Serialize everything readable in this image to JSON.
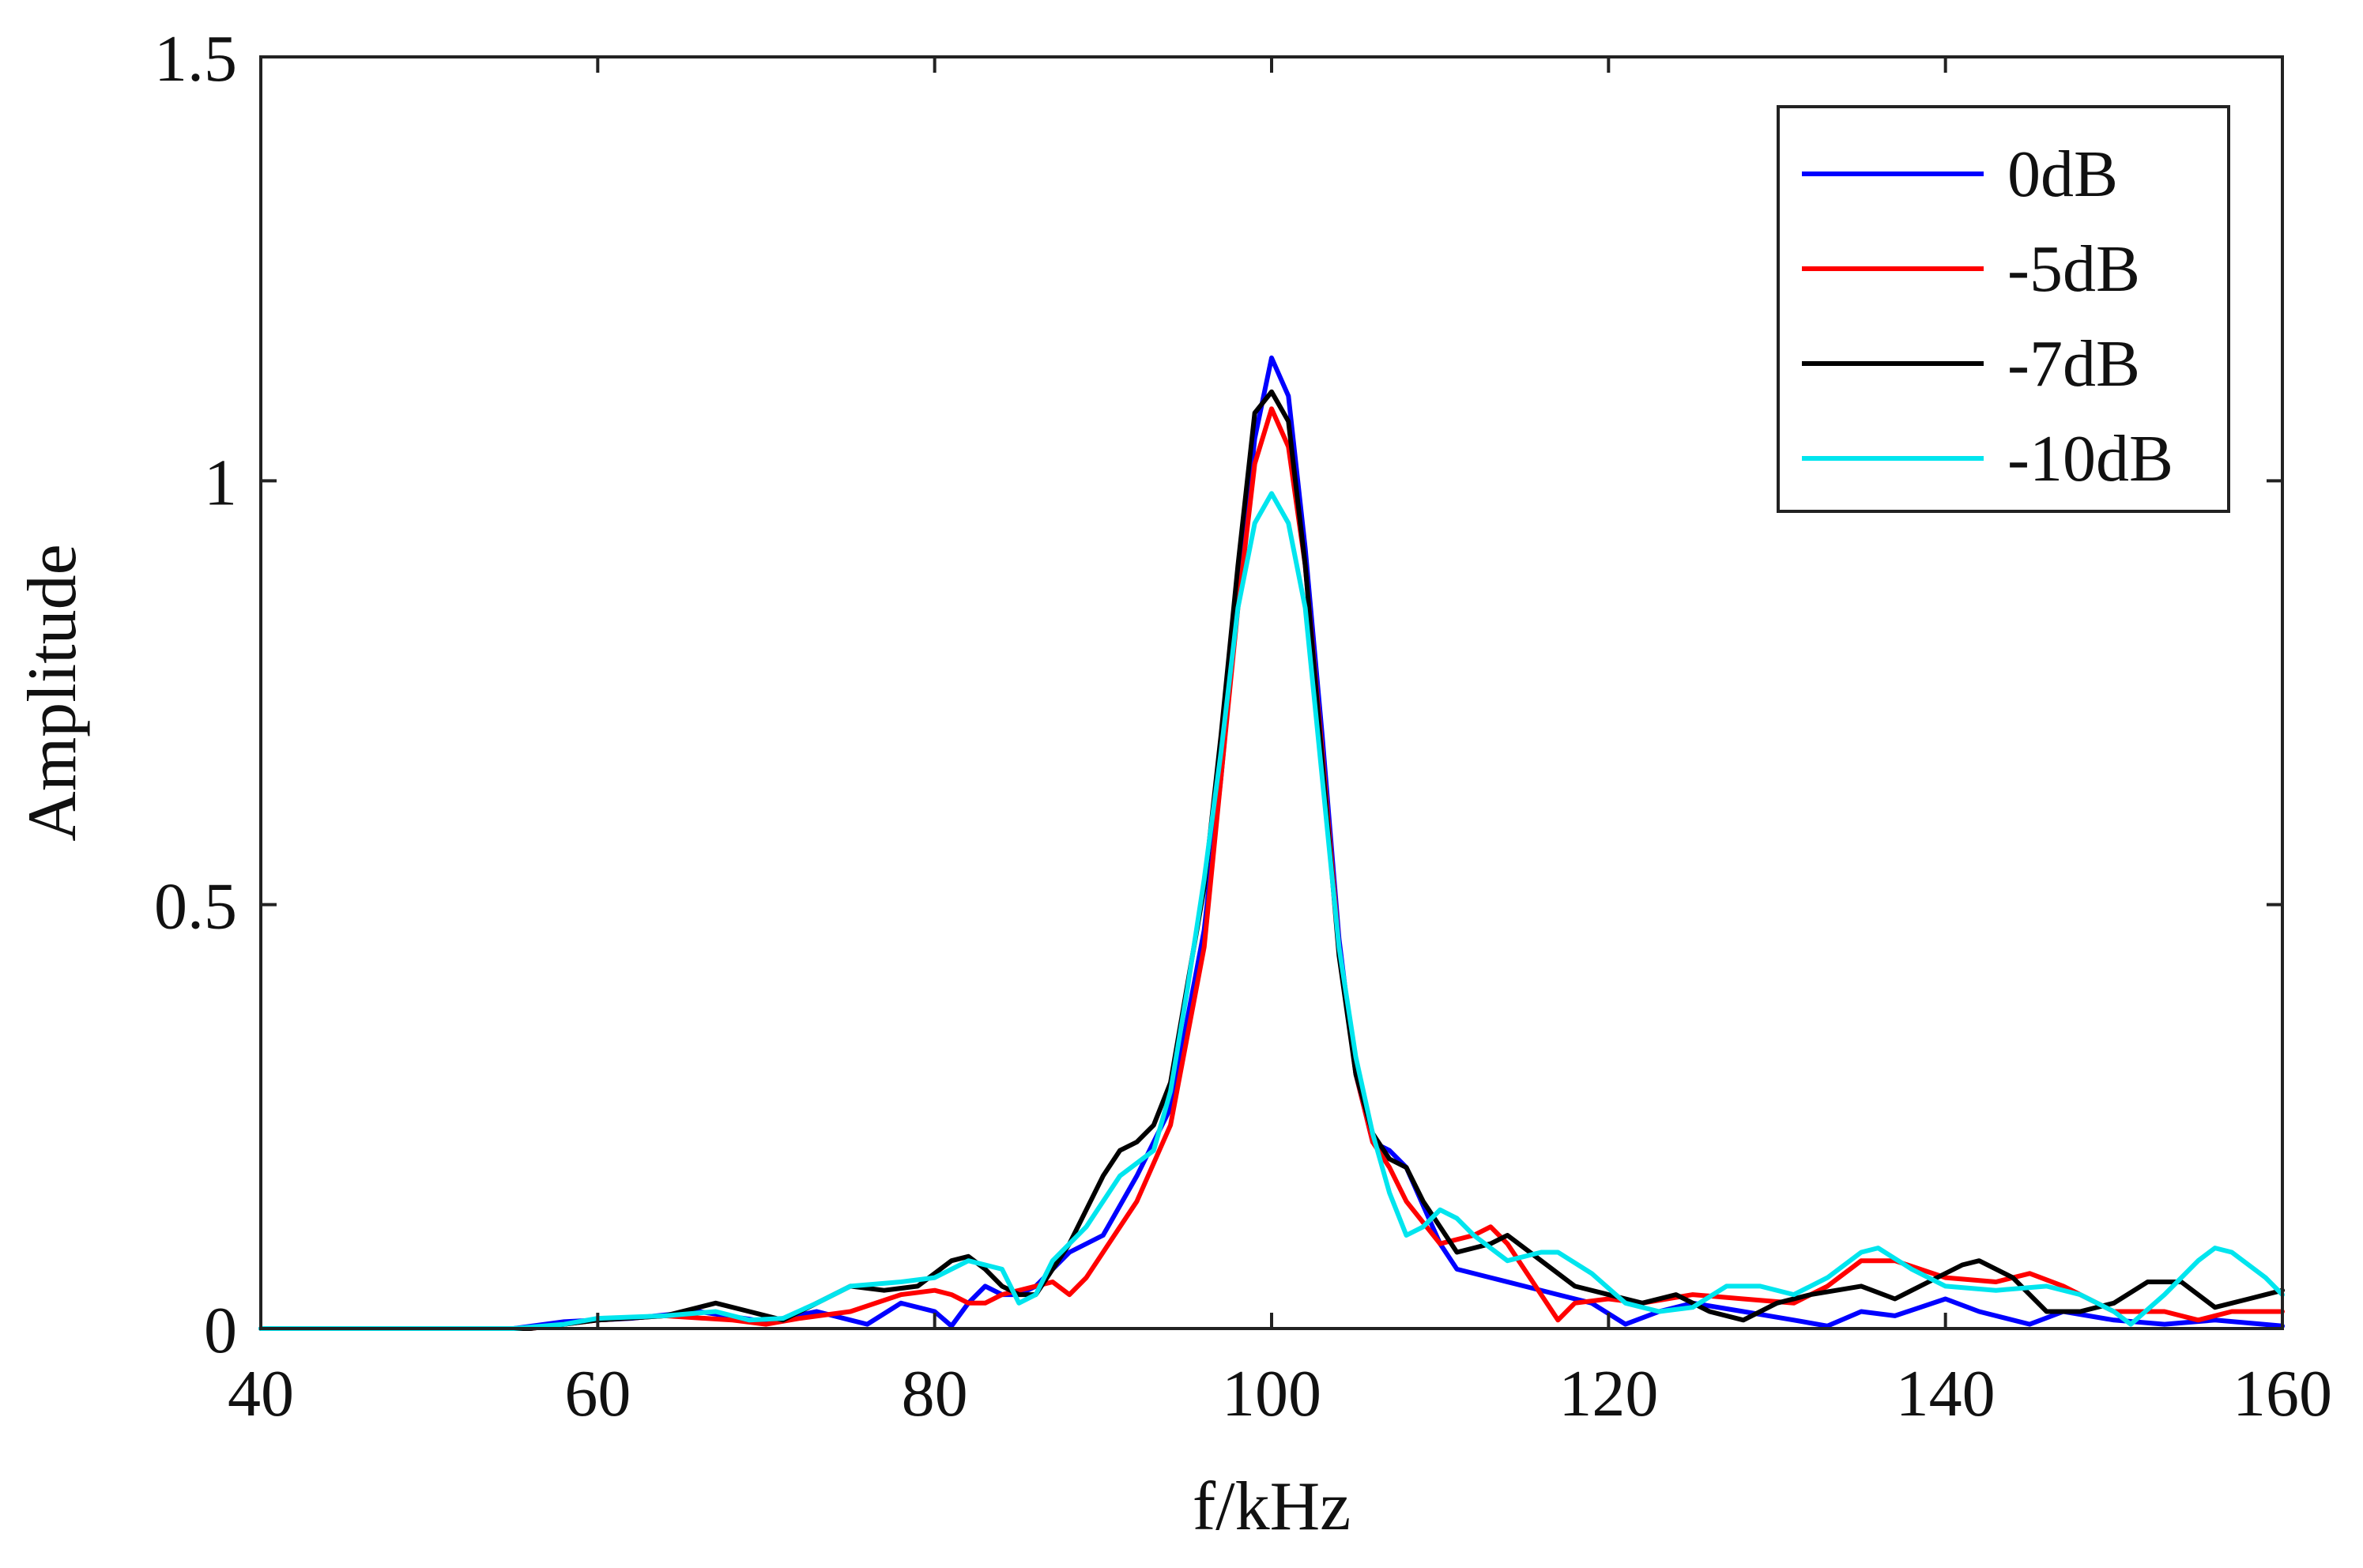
{
  "chart_data": {
    "type": "line",
    "title": "",
    "xlabel": "f/kHz",
    "ylabel": "Amplitude",
    "xlim": [
      40,
      160
    ],
    "ylim": [
      0,
      1.5
    ],
    "xticks": [
      40,
      60,
      80,
      100,
      120,
      140,
      160
    ],
    "yticks": [
      0,
      0.5,
      1,
      1.5
    ],
    "xtick_labels": [
      "40",
      "60",
      "80",
      "100",
      "120",
      "140",
      "160"
    ],
    "ytick_labels": [
      "0",
      "0.5",
      "1",
      "1.5"
    ],
    "grid": false,
    "legend": "top-right",
    "series": [
      {
        "name": "0dB",
        "color": "#0000ff",
        "points": [
          [
            40,
            0
          ],
          [
            50,
            0
          ],
          [
            55,
            0
          ],
          [
            58,
            0.008
          ],
          [
            62,
            0.012
          ],
          [
            66,
            0.02
          ],
          [
            70,
            0.008
          ],
          [
            73,
            0.02
          ],
          [
            75,
            0.01
          ],
          [
            76,
            0.005
          ],
          [
            78,
            0.03
          ],
          [
            80,
            0.02
          ],
          [
            81,
            0.003
          ],
          [
            82,
            0.03
          ],
          [
            83,
            0.05
          ],
          [
            84,
            0.04
          ],
          [
            85,
            0.04
          ],
          [
            86,
            0.05
          ],
          [
            88,
            0.09
          ],
          [
            90,
            0.11
          ],
          [
            92,
            0.18
          ],
          [
            94,
            0.26
          ],
          [
            96,
            0.47
          ],
          [
            97,
            0.65
          ],
          [
            98,
            0.86
          ],
          [
            99,
            1.05
          ],
          [
            100,
            1.145
          ],
          [
            101,
            1.1
          ],
          [
            102,
            0.92
          ],
          [
            103,
            0.7
          ],
          [
            104,
            0.46
          ],
          [
            105,
            0.3
          ],
          [
            106,
            0.22
          ],
          [
            107,
            0.21
          ],
          [
            108,
            0.19
          ],
          [
            110,
            0.1
          ],
          [
            111,
            0.07
          ],
          [
            113,
            0.06
          ],
          [
            115,
            0.05
          ],
          [
            117,
            0.04
          ],
          [
            119,
            0.03
          ],
          [
            121,
            0.005
          ],
          [
            123,
            0.02
          ],
          [
            125,
            0.03
          ],
          [
            128,
            0.02
          ],
          [
            131,
            0.01
          ],
          [
            133,
            0.003
          ],
          [
            135,
            0.02
          ],
          [
            137,
            0.015
          ],
          [
            140,
            0.035
          ],
          [
            142,
            0.02
          ],
          [
            145,
            0.005
          ],
          [
            147,
            0.02
          ],
          [
            150,
            0.01
          ],
          [
            153,
            0.005
          ],
          [
            156,
            0.01
          ],
          [
            160,
            0.003
          ]
        ]
      },
      {
        "name": "-5dB",
        "color": "#ff0000",
        "points": [
          [
            40,
            0
          ],
          [
            50,
            0
          ],
          [
            56,
            0
          ],
          [
            60,
            0.01
          ],
          [
            64,
            0.015
          ],
          [
            68,
            0.01
          ],
          [
            70,
            0.005
          ],
          [
            72,
            0.012
          ],
          [
            75,
            0.02
          ],
          [
            78,
            0.04
          ],
          [
            80,
            0.045
          ],
          [
            81,
            0.04
          ],
          [
            82,
            0.03
          ],
          [
            83,
            0.03
          ],
          [
            84,
            0.04
          ],
          [
            86,
            0.05
          ],
          [
            87,
            0.055
          ],
          [
            88,
            0.04
          ],
          [
            89,
            0.06
          ],
          [
            90,
            0.09
          ],
          [
            92,
            0.15
          ],
          [
            94,
            0.24
          ],
          [
            96,
            0.45
          ],
          [
            97,
            0.65
          ],
          [
            98,
            0.85
          ],
          [
            99,
            1.02
          ],
          [
            100,
            1.085
          ],
          [
            101,
            1.04
          ],
          [
            102,
            0.9
          ],
          [
            103,
            0.68
          ],
          [
            104,
            0.45
          ],
          [
            105,
            0.3
          ],
          [
            106,
            0.22
          ],
          [
            107,
            0.19
          ],
          [
            108,
            0.15
          ],
          [
            110,
            0.1
          ],
          [
            112,
            0.11
          ],
          [
            113,
            0.12
          ],
          [
            114,
            0.1
          ],
          [
            116,
            0.04
          ],
          [
            117,
            0.01
          ],
          [
            118,
            0.03
          ],
          [
            120,
            0.035
          ],
          [
            122,
            0.03
          ],
          [
            125,
            0.04
          ],
          [
            128,
            0.035
          ],
          [
            131,
            0.03
          ],
          [
            133,
            0.05
          ],
          [
            135,
            0.08
          ],
          [
            137,
            0.08
          ],
          [
            140,
            0.06
          ],
          [
            143,
            0.055
          ],
          [
            145,
            0.065
          ],
          [
            147,
            0.05
          ],
          [
            150,
            0.02
          ],
          [
            153,
            0.02
          ],
          [
            155,
            0.01
          ],
          [
            157,
            0.02
          ],
          [
            160,
            0.02
          ]
        ]
      },
      {
        "name": "-7dB",
        "color": "#000000",
        "points": [
          [
            40,
            0
          ],
          [
            50,
            0
          ],
          [
            56,
            0
          ],
          [
            60,
            0.01
          ],
          [
            64,
            0.015
          ],
          [
            67,
            0.03
          ],
          [
            69,
            0.02
          ],
          [
            71,
            0.01
          ],
          [
            73,
            0.03
          ],
          [
            75,
            0.05
          ],
          [
            77,
            0.045
          ],
          [
            79,
            0.05
          ],
          [
            81,
            0.08
          ],
          [
            82,
            0.085
          ],
          [
            83,
            0.07
          ],
          [
            84,
            0.05
          ],
          [
            85,
            0.04
          ],
          [
            86,
            0.04
          ],
          [
            88,
            0.1
          ],
          [
            90,
            0.18
          ],
          [
            91,
            0.21
          ],
          [
            92,
            0.22
          ],
          [
            93,
            0.24
          ],
          [
            94,
            0.29
          ],
          [
            96,
            0.52
          ],
          [
            97,
            0.7
          ],
          [
            98,
            0.9
          ],
          [
            99,
            1.08
          ],
          [
            100,
            1.105
          ],
          [
            101,
            1.07
          ],
          [
            102,
            0.9
          ],
          [
            103,
            0.67
          ],
          [
            104,
            0.44
          ],
          [
            105,
            0.3
          ],
          [
            106,
            0.23
          ],
          [
            107,
            0.2
          ],
          [
            108,
            0.19
          ],
          [
            109,
            0.15
          ],
          [
            110,
            0.12
          ],
          [
            111,
            0.09
          ],
          [
            112,
            0.095
          ],
          [
            113,
            0.1
          ],
          [
            114,
            0.11
          ],
          [
            116,
            0.08
          ],
          [
            118,
            0.05
          ],
          [
            120,
            0.04
          ],
          [
            122,
            0.03
          ],
          [
            124,
            0.04
          ],
          [
            126,
            0.02
          ],
          [
            128,
            0.01
          ],
          [
            130,
            0.03
          ],
          [
            132,
            0.04
          ],
          [
            135,
            0.05
          ],
          [
            137,
            0.035
          ],
          [
            139,
            0.055
          ],
          [
            141,
            0.075
          ],
          [
            142,
            0.08
          ],
          [
            144,
            0.06
          ],
          [
            146,
            0.02
          ],
          [
            148,
            0.02
          ],
          [
            150,
            0.03
          ],
          [
            152,
            0.055
          ],
          [
            154,
            0.055
          ],
          [
            156,
            0.025
          ],
          [
            158,
            0.035
          ],
          [
            160,
            0.045
          ]
        ]
      },
      {
        "name": "-10dB",
        "color": "#00e5ee",
        "points": [
          [
            40,
            0
          ],
          [
            50,
            0
          ],
          [
            55,
            0
          ],
          [
            58,
            0.005
          ],
          [
            60,
            0.012
          ],
          [
            64,
            0.015
          ],
          [
            67,
            0.02
          ],
          [
            69,
            0.01
          ],
          [
            71,
            0.012
          ],
          [
            73,
            0.03
          ],
          [
            75,
            0.05
          ],
          [
            78,
            0.055
          ],
          [
            80,
            0.06
          ],
          [
            82,
            0.08
          ],
          [
            84,
            0.07
          ],
          [
            85,
            0.03
          ],
          [
            86,
            0.04
          ],
          [
            87,
            0.08
          ],
          [
            89,
            0.12
          ],
          [
            91,
            0.18
          ],
          [
            93,
            0.21
          ],
          [
            94,
            0.28
          ],
          [
            95,
            0.4
          ],
          [
            96,
            0.53
          ],
          [
            97,
            0.68
          ],
          [
            98,
            0.85
          ],
          [
            99,
            0.95
          ],
          [
            100,
            0.985
          ],
          [
            101,
            0.95
          ],
          [
            102,
            0.85
          ],
          [
            103,
            0.65
          ],
          [
            104,
            0.45
          ],
          [
            105,
            0.32
          ],
          [
            106,
            0.23
          ],
          [
            107,
            0.16
          ],
          [
            108,
            0.11
          ],
          [
            109,
            0.12
          ],
          [
            110,
            0.14
          ],
          [
            111,
            0.13
          ],
          [
            112,
            0.11
          ],
          [
            114,
            0.08
          ],
          [
            116,
            0.09
          ],
          [
            117,
            0.09
          ],
          [
            119,
            0.065
          ],
          [
            121,
            0.03
          ],
          [
            123,
            0.02
          ],
          [
            125,
            0.025
          ],
          [
            127,
            0.05
          ],
          [
            129,
            0.05
          ],
          [
            131,
            0.04
          ],
          [
            133,
            0.06
          ],
          [
            135,
            0.09
          ],
          [
            136,
            0.095
          ],
          [
            138,
            0.07
          ],
          [
            140,
            0.05
          ],
          [
            143,
            0.045
          ],
          [
            146,
            0.05
          ],
          [
            148,
            0.04
          ],
          [
            150,
            0.02
          ],
          [
            151,
            0.005
          ],
          [
            153,
            0.04
          ],
          [
            155,
            0.08
          ],
          [
            156,
            0.095
          ],
          [
            157,
            0.09
          ],
          [
            159,
            0.06
          ],
          [
            160,
            0.04
          ]
        ]
      }
    ]
  }
}
